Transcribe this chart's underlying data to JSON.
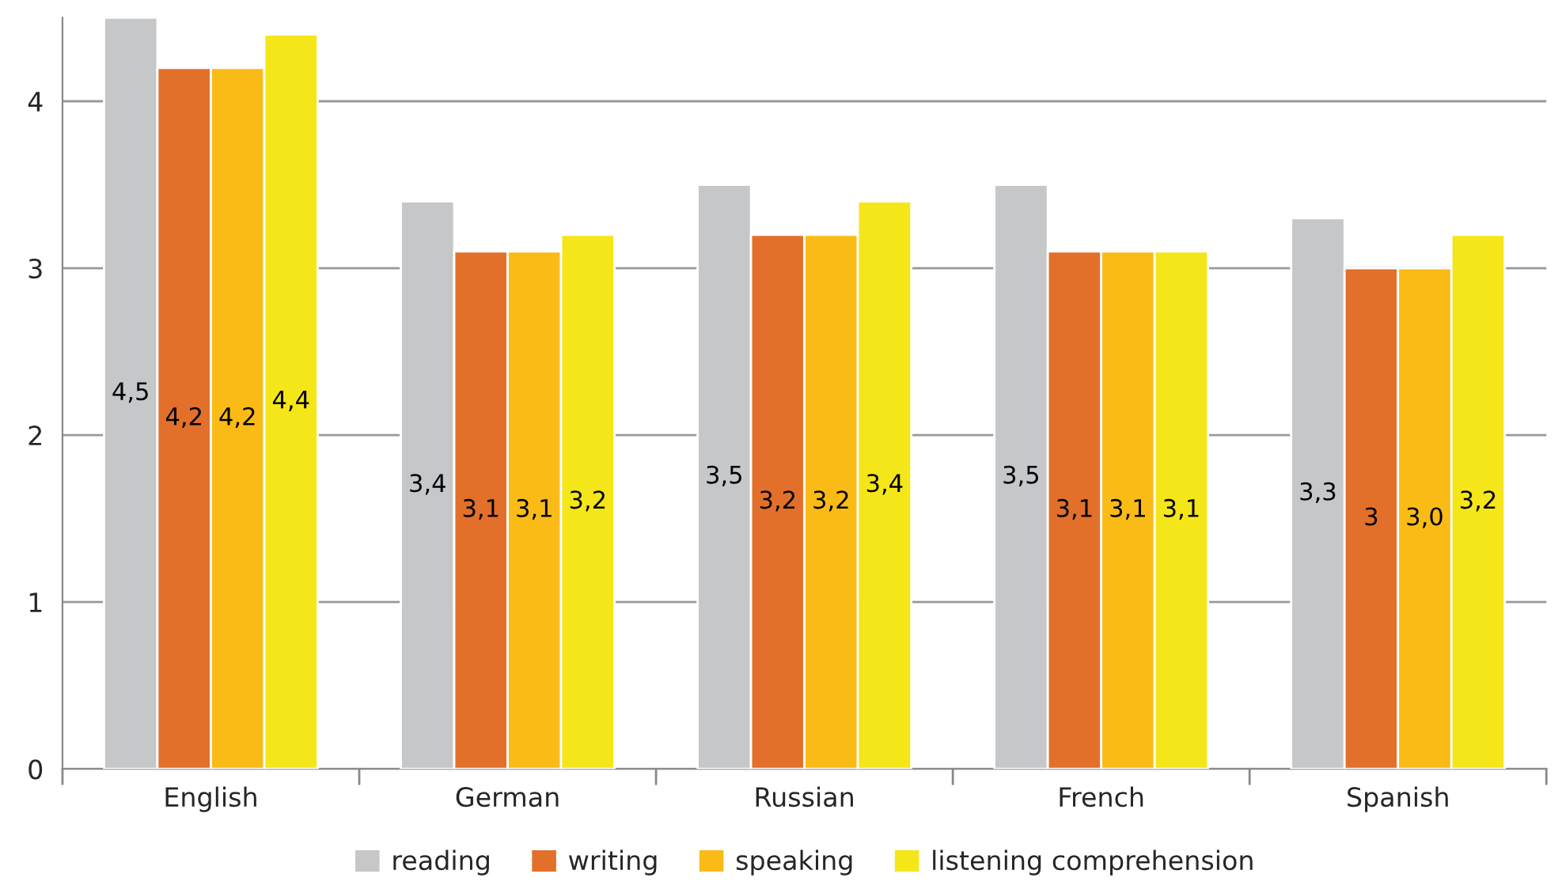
{
  "chart_data": {
    "type": "bar",
    "categories": [
      "English",
      "German",
      "Russian",
      "French",
      "Spanish"
    ],
    "series": [
      {
        "name": "reading",
        "color": "#c6c7c9",
        "values": [
          4.5,
          3.4,
          3.5,
          3.5,
          3.3
        ],
        "value_labels": [
          "4,5",
          "3,4",
          "3,5",
          "3,5",
          "3,3"
        ]
      },
      {
        "name": "writing",
        "color": "#e2702a",
        "values": [
          4.2,
          3.1,
          3.2,
          3.1,
          3.0
        ],
        "value_labels": [
          "4,2",
          "3,1",
          "3,2",
          "3,1",
          "3"
        ]
      },
      {
        "name": "speaking",
        "color": "#fbbb16",
        "values": [
          4.2,
          3.1,
          3.2,
          3.1,
          3.0
        ],
        "value_labels": [
          "4,2",
          "3,1",
          "3,2",
          "3,1",
          "3,0"
        ]
      },
      {
        "name": "listening comprehension",
        "color": "#f5e619",
        "values": [
          4.4,
          3.2,
          3.4,
          3.1,
          3.2
        ],
        "value_labels": [
          "4,4",
          "3,2",
          "3,4",
          "3,1",
          "3,2"
        ]
      }
    ],
    "ylim": [
      0,
      4.5
    ],
    "yticks": [
      0,
      1,
      2,
      3,
      4
    ],
    "grid": "y",
    "legend": "bottom"
  }
}
